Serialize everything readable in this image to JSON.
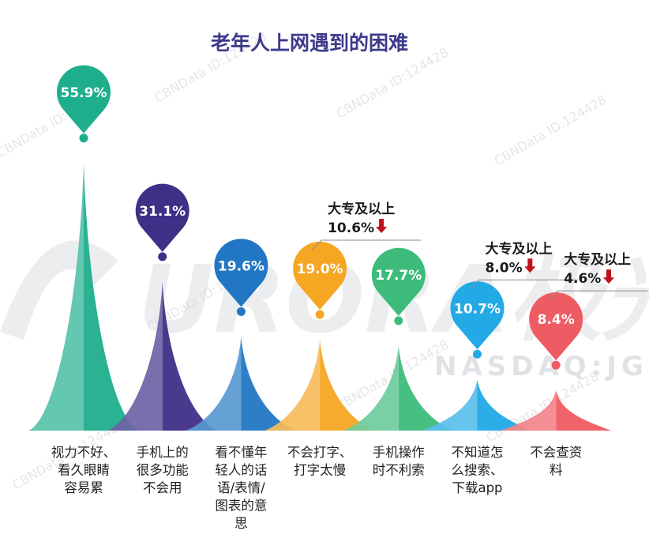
{
  "chart_data": {
    "type": "bar",
    "title": "老年人上网遇到的困难",
    "title_color": "#3d3a8c",
    "categories": [
      [
        "视力不好、",
        "看久眼睛",
        "容易累"
      ],
      [
        "手机上的",
        "很多功能",
        "不会用"
      ],
      [
        "看不懂年",
        "轻人的话",
        "语/表情/",
        "图表的意",
        "思"
      ],
      [
        "不会打字、",
        "打字太慢"
      ],
      [
        "手机操作",
        "时不利索"
      ],
      [
        "不知道怎",
        "么搜索、",
        "下载app"
      ],
      [
        "不会查资",
        "料"
      ]
    ],
    "values": [
      55.9,
      31.1,
      19.6,
      19.0,
      17.7,
      10.7,
      8.4
    ],
    "value_labels": [
      "55.9%",
      "31.1%",
      "19.6%",
      "19.0%",
      "17.7%",
      "10.7%",
      "8.4%"
    ],
    "colors": [
      "#1fae8c",
      "#3f2f87",
      "#2277c4",
      "#f5a623",
      "#3dbb7b",
      "#22a9e6",
      "#ef5b62"
    ],
    "ylim": [
      0,
      60
    ],
    "annotations": [
      {
        "index": 3,
        "line1": "大专及以上",
        "line2": "10.6%",
        "direction": "down",
        "arrow_color": "#c0121a"
      },
      {
        "index": 5,
        "line1": "大专及以上",
        "line2": "8.0%",
        "direction": "down",
        "arrow_color": "#c0121a"
      },
      {
        "index": 6,
        "line1": "大专及以上",
        "line2": "4.6%",
        "direction": "down",
        "arrow_color": "#c0121a"
      }
    ],
    "grid": false,
    "legend": "none"
  },
  "watermark": {
    "logo_text": "URORA极光",
    "ticker": "NASDAQ:JG",
    "stamp": "CBNData ID:124428"
  }
}
